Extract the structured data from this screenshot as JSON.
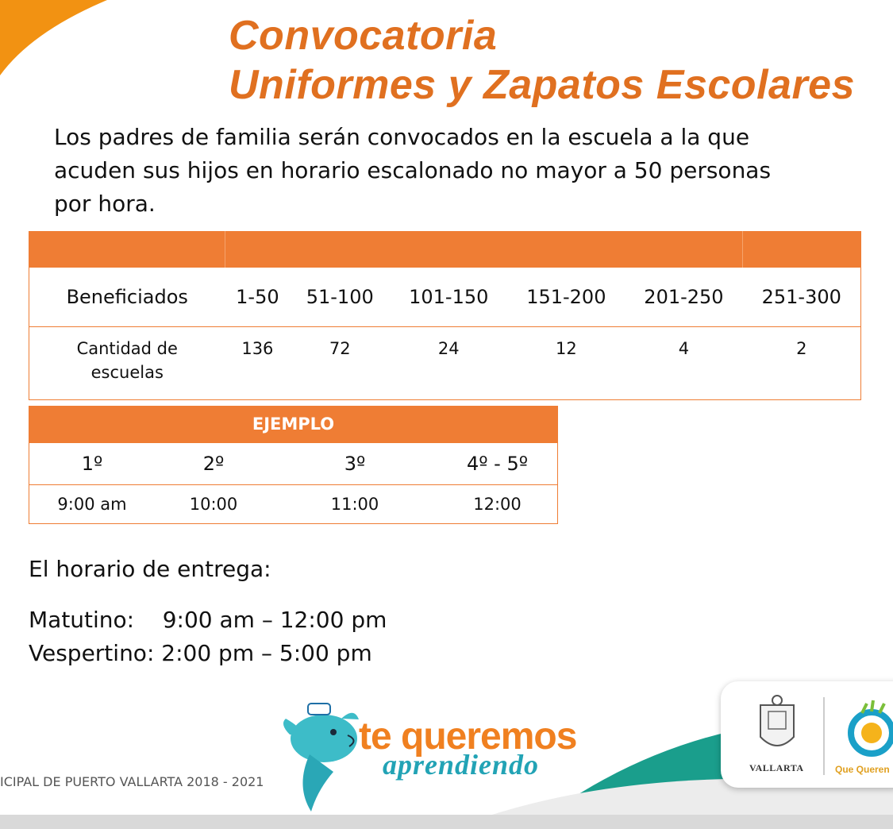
{
  "title": {
    "line1": "Convocatoria",
    "line2": "Uniformes y Zapatos Escolares"
  },
  "intro": "Los padres de familia serán convocados en la escuela a la que acuden sus hijos en horario escalonado no mayor a 50 personas por hora.",
  "beneficiaries_table": {
    "row1": [
      "Beneficiados",
      "1-50",
      "51-100",
      "101-150",
      "151-200",
      "201-250",
      "251-300"
    ],
    "row2": [
      "Cantidad de escuelas",
      "136",
      "72",
      "24",
      "12",
      "4",
      "2"
    ]
  },
  "example_table": {
    "header": "EJEMPLO",
    "grades": [
      "1º",
      "2º",
      "3º",
      "4º - 5º"
    ],
    "times": [
      "9:00 am",
      "10:00",
      "11:00",
      "12:00"
    ]
  },
  "delivery": {
    "label": "El horario de entrega:",
    "morning": "Matutino:    9:00 am – 12:00 pm",
    "evening": "Vespertino: 2:00 pm – 5:00 pm"
  },
  "footer": {
    "text": "ICIPAL DE PUERTO VALLARTA 2018 - 2021",
    "brand_line1": "te queremos",
    "brand_line2": "aprendiendo",
    "logo1_text": "VALLARTA",
    "logo2_text": "Que Queren"
  },
  "colors": {
    "accent": "#ef7d34",
    "title": "#e07020",
    "teal": "#1a9e8c"
  }
}
